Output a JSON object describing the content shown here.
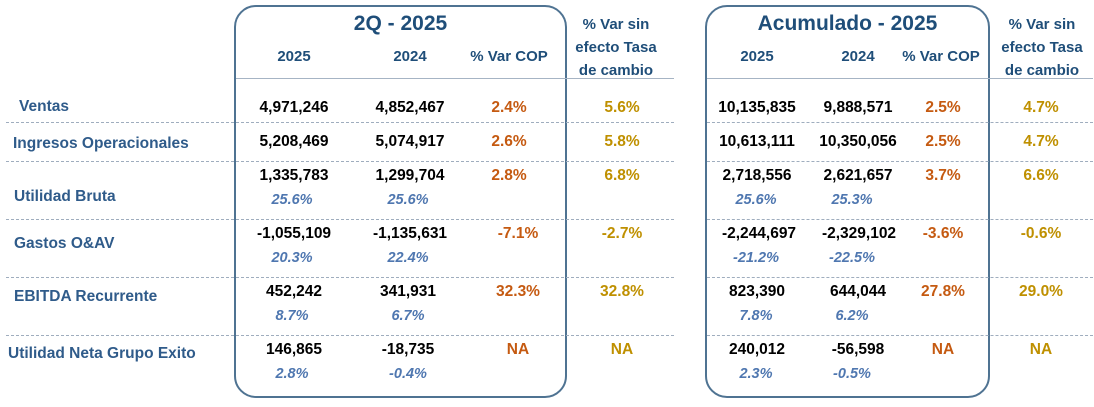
{
  "sections": [
    {
      "title": "2Q - 2025",
      "col_2025": "2025",
      "col_2024": "2024",
      "col_var": "% Var COP",
      "col_var_sin": [
        "% Var sin",
        "efecto Tasa",
        "de cambio"
      ]
    },
    {
      "title": "Acumulado - 2025",
      "col_2025": "2025",
      "col_2024": "2024",
      "col_var": "% Var COP",
      "col_var_sin": [
        "% Var sin",
        "efecto Tasa",
        "de cambio"
      ]
    }
  ],
  "rows": [
    {
      "label": "Ventas",
      "q": {
        "v2025": "4,971,246",
        "v2024": "4,852,467",
        "var": "2.4%",
        "var_sin": "5.6%"
      },
      "a": {
        "v2025": "10,135,835",
        "v2024": "9,888,571",
        "var": "2.5%",
        "var_sin": "4.7%"
      }
    },
    {
      "label": "Ingresos Operacionales",
      "q": {
        "v2025": "5,208,469",
        "v2024": "5,074,917",
        "var": "2.6%",
        "var_sin": "5.8%"
      },
      "a": {
        "v2025": "10,613,111",
        "v2024": "10,350,056",
        "var": "2.5%",
        "var_sin": "4.7%"
      }
    },
    {
      "label": "Utilidad Bruta",
      "q": {
        "v2025": "1,335,783",
        "v2024": "1,299,704",
        "var": "2.8%",
        "var_sin": "6.8%",
        "m2025": "25.6%",
        "m2024": "25.6%"
      },
      "a": {
        "v2025": "2,718,556",
        "v2024": "2,621,657",
        "var": "3.7%",
        "var_sin": "6.6%",
        "m2025": "25.6%",
        "m2024": "25.3%"
      }
    },
    {
      "label": "Gastos O&AV",
      "q": {
        "v2025": "-1,055,109",
        "v2024": "-1,135,631",
        "var": "-7.1%",
        "var_sin": "-2.7%",
        "m2025": "20.3%",
        "m2024": "22.4%"
      },
      "a": {
        "v2025": "-2,244,697",
        "v2024": "-2,329,102",
        "var": "-3.6%",
        "var_sin": "-0.6%",
        "m2025": "-21.2%",
        "m2024": "-22.5%"
      }
    },
    {
      "label": "EBITDA Recurrente",
      "q": {
        "v2025": "452,242",
        "v2024": "341,931",
        "var": "32.3%",
        "var_sin": "32.8%",
        "m2025": "8.7%",
        "m2024": "6.7%"
      },
      "a": {
        "v2025": "823,390",
        "v2024": "644,044",
        "var": "27.8%",
        "var_sin": "29.0%",
        "m2025": "7.8%",
        "m2024": "6.2%"
      }
    },
    {
      "label": "Utilidad Neta Grupo Exito",
      "q": {
        "v2025": "146,865",
        "v2024": "-18,735",
        "var": "NA",
        "var_sin": "NA",
        "m2025": "2.8%",
        "m2024": "-0.4%"
      },
      "a": {
        "v2025": "240,012",
        "v2024": "-56,598",
        "var": "NA",
        "var_sin": "NA",
        "m2025": "2.3%",
        "m2024": "-0.5%"
      }
    }
  ]
}
